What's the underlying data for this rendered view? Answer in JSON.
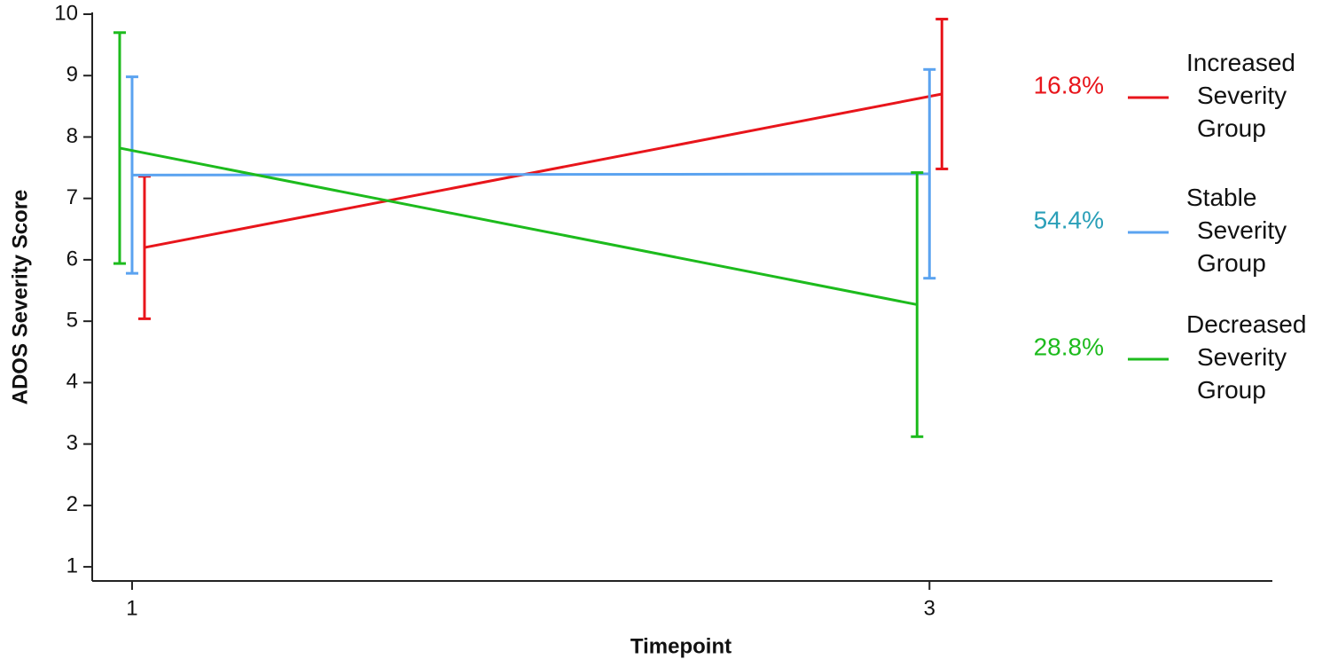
{
  "chart_data": {
    "type": "line",
    "x_label": "Timepoint",
    "y_label": "ADOS Severity Score",
    "x": [
      1,
      3
    ],
    "xlim": [
      0.9,
      3.86
    ],
    "xticks": [
      1,
      3
    ],
    "ylim": [
      0.77,
      10
    ],
    "yticks": [
      1,
      2,
      3,
      4,
      5,
      6,
      7,
      8,
      9,
      10
    ],
    "grid": false,
    "series": [
      {
        "name": "Increased Severity Group",
        "label": "16.8%",
        "color": "#e8151b",
        "label_color": "#e8151b",
        "values": [
          6.2,
          8.7
        ],
        "errors": [
          1.16,
          1.22
        ]
      },
      {
        "name": "Stable Severity Group",
        "label": "54.4%",
        "color": "#5ba3f0",
        "label_color": "#2a9fb8",
        "values": [
          7.38,
          7.4
        ],
        "errors": [
          1.6,
          1.7
        ]
      },
      {
        "name": "Decreased Severity Group",
        "label": "28.8%",
        "color": "#1dbb1d",
        "label_color": "#1dbb1d",
        "values": [
          7.82,
          5.27
        ],
        "errors": [
          1.88,
          2.15
        ]
      }
    ]
  }
}
